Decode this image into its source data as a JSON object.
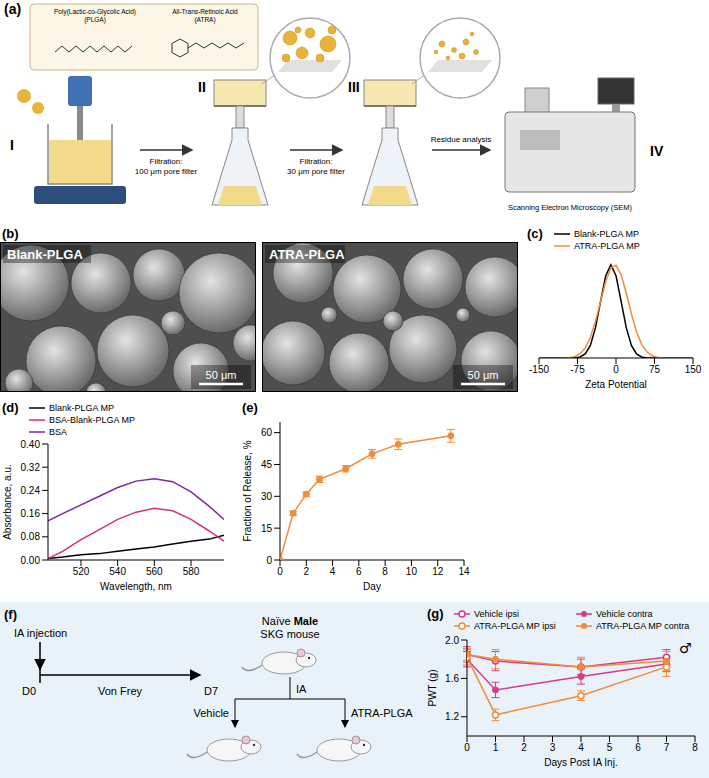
{
  "panel_a": {
    "label": "(a)",
    "steps": [
      "I",
      "II",
      "III",
      "IV"
    ],
    "materials": [
      "Poly(Lactic-co-Glycolic Acid) (PLGA)",
      "All-Trans-Retinoic Acid (ATRA)"
    ],
    "arrows": [
      "Filtration: 100 μm pore filter",
      "Filtration: 30 μm pore filter",
      "Residue analysis"
    ],
    "instrument": "Scanning Electron Microscopy (SEM)"
  },
  "panel_b": {
    "label": "(b)",
    "images": [
      {
        "title": "Blank-PLGA",
        "scale_bar": "50 μm"
      },
      {
        "title": "ATRA-PLGA",
        "scale_bar": "50 μm"
      }
    ]
  },
  "panel_f": {
    "label": "(f)",
    "injection": "IA injection",
    "start": "D0",
    "end": "D7",
    "assay": "Von Frey",
    "mouse": [
      "Naïve",
      "Male",
      "SKG mouse"
    ],
    "route": "IA",
    "groups": [
      "Vehicle",
      "ATRA-PLGA"
    ]
  },
  "chart_data": [
    {
      "label": "(c)",
      "type": "line",
      "x_label": "Zeta Potential",
      "x": [
        -150,
        -140,
        -130,
        -120,
        -110,
        -100,
        -90,
        -80,
        -70,
        -60,
        -50,
        -40,
        -30,
        -20,
        -10,
        0,
        10,
        20,
        30,
        40,
        50,
        60,
        70,
        80,
        90,
        100,
        110,
        120,
        130,
        140,
        150
      ],
      "series": [
        {
          "name": "Blank-PLGA MP",
          "color": "#000000",
          "values": [
            0,
            0,
            0,
            0,
            0,
            0,
            0,
            0,
            0.011,
            0.044,
            0.135,
            0.325,
            0.607,
            0.882,
            1.0,
            0.882,
            0.607,
            0.325,
            0.135,
            0.044,
            0.011,
            0,
            0,
            0,
            0,
            0,
            0,
            0,
            0,
            0,
            0
          ]
        },
        {
          "name": "ATRA-PLGA MP",
          "color": "#f28c38",
          "values": [
            0,
            0,
            0,
            0,
            0,
            0,
            0.006,
            0.017,
            0.046,
            0.108,
            0.22,
            0.391,
            0.607,
            0.82,
            0.967,
            0.994,
            0.891,
            0.696,
            0.474,
            0.281,
            0.146,
            0.066,
            0.026,
            0.009,
            0,
            0,
            0,
            0,
            0,
            0,
            0
          ]
        }
      ],
      "xlim": [
        -150,
        150
      ],
      "xticks": [
        -150,
        -75,
        0,
        75,
        150
      ],
      "ylim": [
        0,
        1.05
      ],
      "tick_labels": "x",
      "legend": "top"
    },
    {
      "label": "(d)",
      "type": "line",
      "x_label": "Wavelength, nm",
      "y_label": "Absorbance, a.u.",
      "x": [
        502,
        510,
        520,
        530,
        540,
        550,
        560,
        570,
        580,
        590,
        598
      ],
      "series": [
        {
          "name": "Blank-PLGA MP",
          "color": "#000000",
          "values": [
            0.005,
            0.01,
            0.018,
            0.022,
            0.03,
            0.038,
            0.045,
            0.055,
            0.065,
            0.072,
            0.085
          ]
        },
        {
          "name": "BSA-Blank-PLGA MP",
          "color": "#d6336c",
          "values": [
            0.005,
            0.03,
            0.07,
            0.105,
            0.14,
            0.165,
            0.178,
            0.17,
            0.14,
            0.1,
            0.065
          ]
        },
        {
          "name": "BSA",
          "color": "#7b2a9e",
          "values": [
            0.135,
            0.16,
            0.19,
            0.22,
            0.25,
            0.272,
            0.28,
            0.27,
            0.235,
            0.185,
            0.14
          ]
        }
      ],
      "xlim": [
        502,
        598
      ],
      "xticks": [
        520,
        540,
        560,
        580
      ],
      "ylim": [
        0,
        0.4
      ],
      "yticks": [
        {
          "value": 0,
          "label": "0.00"
        },
        {
          "value": 0.08,
          "label": "0.08"
        },
        {
          "value": 0.16,
          "label": "0.16"
        },
        {
          "value": 0.24,
          "label": "0.24"
        },
        {
          "value": 0.32,
          "label": "0.32"
        },
        {
          "value": 0.4,
          "label": "0.40"
        }
      ],
      "legend": "top"
    },
    {
      "label": "(e)",
      "type": "line",
      "x_label": "Day",
      "y_label": "Fraction of Release, %",
      "x": [
        0,
        1,
        2,
        3,
        5,
        7,
        9,
        13
      ],
      "values": [
        0,
        22,
        31,
        38,
        43,
        50,
        54.5,
        58.5
      ],
      "errors": [
        0,
        1,
        1,
        1.5,
        1.5,
        2,
        2.5,
        3
      ],
      "color": "#f28c38",
      "marker": "circle",
      "xlim": [
        0,
        14
      ],
      "xticks": [
        0,
        2,
        4,
        6,
        8,
        10,
        12,
        14
      ],
      "ylim": [
        0,
        65
      ],
      "yticks": [
        0,
        15,
        30,
        45,
        60
      ]
    },
    {
      "label": "(g)",
      "type": "line",
      "x_label": "Days Post IA Inj.",
      "y_label": "PWT (g)",
      "annotation": "♂",
      "x": [
        0,
        1,
        4,
        7
      ],
      "series": [
        {
          "name": "Vehicle ipsi",
          "color": "#d63a8f",
          "marker": "open circle",
          "values": [
            1.85,
            1.78,
            1.72,
            1.82
          ],
          "errors": [
            0.08,
            0.1,
            0.08,
            0.08
          ]
        },
        {
          "name": "Vehicle contra",
          "color": "#d63a8f",
          "marker": "circle",
          "values": [
            1.8,
            1.48,
            1.62,
            1.75
          ],
          "errors": [
            0.08,
            0.08,
            0.08,
            0.08
          ]
        },
        {
          "name": "ATRA-PLGA MP ipsi",
          "color": "#f28c38",
          "marker": "open circle",
          "values": [
            1.82,
            1.22,
            1.42,
            1.72
          ],
          "errors": [
            0.08,
            0.06,
            0.05,
            0.1
          ]
        },
        {
          "name": "ATRA-PLGA MP contra",
          "color": "#f28c38",
          "marker": "circle",
          "values": [
            1.85,
            1.8,
            1.72,
            1.78
          ],
          "errors": [
            0.06,
            0.1,
            0.1,
            0.1
          ]
        }
      ],
      "xlim": [
        0,
        8
      ],
      "xticks": [
        0,
        1,
        2,
        3,
        4,
        5,
        6,
        7,
        8
      ],
      "ylim": [
        1,
        2
      ],
      "yticks": [
        1.2,
        1.6,
        {
          "value": 2,
          "label": "2.0"
        }
      ],
      "legend": "top"
    }
  ]
}
